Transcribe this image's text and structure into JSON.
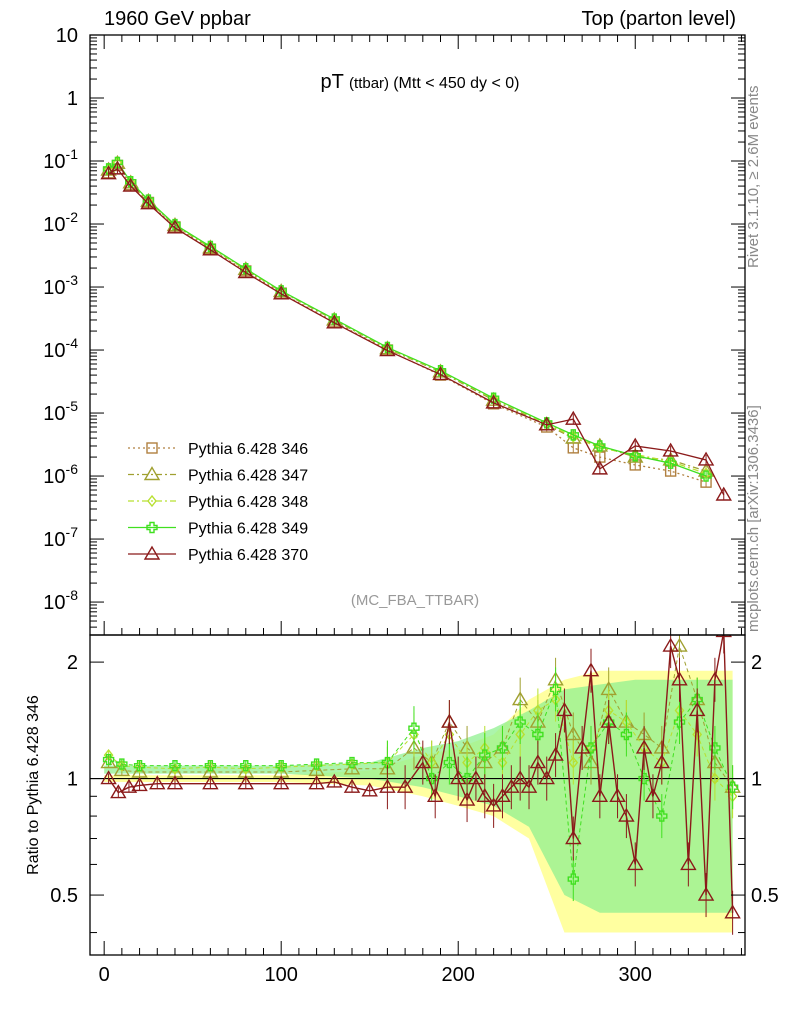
{
  "header": {
    "left": "1960 GeV ppbar",
    "right": "Top (parton level)"
  },
  "side_labels": {
    "rivet": "Rivet 3.1.10, ≥ 2.6M events",
    "mcplots": "mcplots.cern.ch [arXiv:1306.3436]"
  },
  "chart_data": [
    {
      "type": "line",
      "title_main": "pT",
      "title_sub": "(ttbar)",
      "title_rest": "(Mtt < 450 dy < 0)",
      "watermark": "(MC_FBA_TTBAR)",
      "yscale": "log",
      "ylim": [
        3e-09,
        10
      ],
      "xlim": [
        -8,
        362
      ],
      "y_tick_labels": [
        "10",
        "1",
        "10^-1",
        "10^-2",
        "10^-3",
        "10^-4",
        "10^-5",
        "10^-6",
        "10^-7",
        "10^-8"
      ],
      "legend_position": "lower-left",
      "series": [
        {
          "name": "Pythia 6.428 346",
          "color": "#b08040",
          "marker": "square",
          "line": "dotted",
          "x": [
            2.5,
            7.5,
            15,
            25,
            40,
            60,
            80,
            100,
            130,
            160,
            190,
            220,
            250,
            265,
            280,
            300,
            320,
            340
          ],
          "y": [
            0.065,
            0.085,
            0.042,
            0.022,
            0.009,
            0.004,
            0.0018,
            0.0008,
            0.00028,
            0.0001,
            4e-05,
            1.4e-05,
            6e-06,
            2.8e-06,
            2e-06,
            1.5e-06,
            1.2e-06,
            8e-07
          ]
        },
        {
          "name": "Pythia 6.428 347",
          "color": "#a0a030",
          "marker": "triangle",
          "line": "dashdot",
          "x": [
            2.5,
            7.5,
            15,
            25,
            40,
            60,
            80,
            100,
            130,
            160,
            190,
            220,
            250,
            265,
            280,
            300,
            320,
            340
          ],
          "y": [
            0.072,
            0.092,
            0.045,
            0.023,
            0.0095,
            0.0042,
            0.0019,
            0.00085,
            0.0003,
            0.000105,
            4.5e-05,
            1.6e-05,
            6.5e-06,
            4e-06,
            3e-06,
            2e-06,
            1.8e-06,
            1.2e-06
          ]
        },
        {
          "name": "Pythia 6.428 348",
          "color": "#b8e030",
          "marker": "diamond",
          "line": "dashdot",
          "x": [
            2.5,
            7.5,
            15,
            25,
            40,
            60,
            80,
            100,
            130,
            160,
            190,
            220,
            250,
            265,
            280,
            300,
            320,
            340
          ],
          "y": [
            0.074,
            0.094,
            0.046,
            0.0235,
            0.0097,
            0.0043,
            0.0019,
            0.00086,
            0.00031,
            0.000108,
            4.6e-05,
            1.7e-05,
            6.8e-06,
            4.2e-06,
            2.8e-06,
            2.2e-06,
            1.7e-06,
            1.1e-06
          ]
        },
        {
          "name": "Pythia 6.428 349",
          "color": "#40e020",
          "marker": "cross",
          "line": "solid",
          "x": [
            2.5,
            7.5,
            15,
            25,
            40,
            60,
            80,
            100,
            130,
            160,
            190,
            220,
            250,
            265,
            280,
            300,
            320,
            340
          ],
          "y": [
            0.075,
            0.095,
            0.047,
            0.024,
            0.0098,
            0.0044,
            0.00195,
            0.00087,
            0.00031,
            0.00011,
            4.7e-05,
            1.72e-05,
            7e-06,
            4.5e-06,
            3e-06,
            2.1e-06,
            1.6e-06,
            1e-06
          ]
        },
        {
          "name": "Pythia 6.428 370",
          "color": "#8b1a1a",
          "marker": "triangle",
          "line": "solid",
          "x": [
            2.5,
            7.5,
            15,
            25,
            40,
            60,
            80,
            100,
            130,
            160,
            190,
            220,
            250,
            265,
            280,
            300,
            320,
            340,
            350
          ],
          "y": [
            0.063,
            0.075,
            0.04,
            0.021,
            0.0087,
            0.0039,
            0.0017,
            0.00078,
            0.00027,
            9.8e-05,
            4.1e-05,
            1.45e-05,
            6.5e-06,
            8e-06,
            1.3e-06,
            3e-06,
            2.5e-06,
            1.8e-06,
            5e-07
          ]
        }
      ]
    },
    {
      "type": "line",
      "ylabel": "Ratio to Pythia 6.428 346",
      "xlim": [
        -8,
        362
      ],
      "ylim": [
        0.35,
        2.35
      ],
      "x_ticks": [
        0,
        100,
        200,
        300
      ],
      "y_ticks": [
        0.5,
        1,
        2
      ],
      "reference_line": 1,
      "bands": [
        {
          "name": "Pythia 6.428 346 uncertainty",
          "color": "#ffff80",
          "x": [
            0,
            100,
            150,
            180,
            200,
            220,
            240,
            260,
            280,
            300,
            320,
            340,
            355
          ],
          "lo": [
            0.98,
            0.98,
            0.96,
            0.9,
            0.85,
            0.8,
            0.7,
            0.4,
            0.4,
            0.4,
            0.4,
            0.4,
            0.4
          ],
          "hi": [
            1.02,
            1.02,
            1.05,
            1.15,
            1.2,
            1.3,
            1.6,
            1.8,
            1.9,
            1.9,
            1.9,
            1.9,
            1.9
          ]
        },
        {
          "name": "Pythia 6.428 349 uncertainty",
          "color": "#90f090",
          "x": [
            0,
            100,
            150,
            180,
            200,
            220,
            240,
            260,
            280,
            300,
            320,
            340,
            355
          ],
          "lo": [
            1.03,
            1.03,
            1.0,
            0.95,
            0.9,
            0.85,
            0.75,
            0.5,
            0.45,
            0.45,
            0.45,
            0.45,
            0.45
          ],
          "hi": [
            1.08,
            1.08,
            1.1,
            1.2,
            1.25,
            1.35,
            1.5,
            1.7,
            1.75,
            1.8,
            1.8,
            1.8,
            1.8
          ]
        }
      ],
      "series": [
        {
          "name": "Pythia 6.428 347",
          "color": "#a0a030",
          "x": [
            2.5,
            10,
            20,
            40,
            60,
            80,
            100,
            120,
            140,
            160,
            175,
            185,
            195,
            205,
            215,
            225,
            235,
            245,
            255,
            265,
            275,
            285,
            295,
            305,
            315,
            325,
            335,
            345,
            355
          ],
          "y": [
            1.1,
            1.05,
            1.04,
            1.04,
            1.04,
            1.04,
            1.04,
            1.05,
            1.06,
            1.06,
            1.2,
            1.1,
            1.4,
            1.2,
            1.1,
            1.2,
            1.6,
            1.4,
            1.8,
            1.3,
            1.1,
            1.7,
            1.4,
            1.3,
            1.2,
            2.2,
            1.6,
            1.1,
            0.95
          ]
        },
        {
          "name": "Pythia 6.428 348",
          "color": "#b8e030",
          "x": [
            2.5,
            10,
            20,
            40,
            60,
            80,
            100,
            120,
            140,
            160,
            175,
            185,
            195,
            205,
            215,
            225,
            235,
            245,
            255,
            265,
            275,
            285,
            295,
            305,
            315,
            325,
            335,
            345,
            355
          ],
          "y": [
            1.15,
            1.08,
            1.07,
            1.06,
            1.07,
            1.06,
            1.07,
            1.08,
            1.09,
            1.1,
            1.3,
            1.1,
            1.3,
            1.1,
            1.2,
            1.1,
            1.3,
            1.5,
            1.6,
            1.1,
            1.2,
            1.5,
            1.4,
            1.2,
            1.1,
            1.5,
            1.3,
            1.0,
            0.9
          ]
        },
        {
          "name": "Pythia 6.428 349",
          "color": "#40e020",
          "x": [
            2.5,
            10,
            20,
            40,
            60,
            80,
            100,
            120,
            140,
            160,
            175,
            185,
            195,
            205,
            215,
            225,
            235,
            245,
            255,
            265,
            275,
            285,
            295,
            305,
            315,
            325,
            335,
            345,
            355
          ],
          "y": [
            1.12,
            1.09,
            1.08,
            1.08,
            1.08,
            1.08,
            1.08,
            1.09,
            1.1,
            1.1,
            1.35,
            1.0,
            1.1,
            1.0,
            1.15,
            1.2,
            1.4,
            1.3,
            1.7,
            0.55,
            1.2,
            1.4,
            1.3,
            1.0,
            0.8,
            1.4,
            1.6,
            1.2,
            0.95
          ]
        },
        {
          "name": "Pythia 6.428 370",
          "color": "#8b1a1a",
          "x": [
            2.5,
            8,
            14,
            20,
            30,
            40,
            60,
            80,
            100,
            120,
            130,
            140,
            150,
            160,
            170,
            180,
            187,
            195,
            200,
            205,
            210,
            215,
            220,
            225,
            230,
            235,
            240,
            245,
            250,
            255,
            260,
            265,
            270,
            275,
            280,
            285,
            290,
            295,
            300,
            305,
            310,
            315,
            320,
            325,
            330,
            335,
            340,
            345,
            350,
            355
          ],
          "y": [
            1.0,
            0.92,
            0.95,
            0.96,
            0.97,
            0.97,
            0.97,
            0.97,
            0.97,
            0.97,
            0.98,
            0.95,
            0.93,
            0.95,
            0.95,
            1.1,
            0.9,
            1.4,
            1.0,
            0.88,
            1.0,
            0.9,
            0.85,
            0.9,
            0.95,
            1.0,
            0.95,
            1.1,
            1.0,
            1.15,
            1.5,
            0.7,
            1.2,
            1.9,
            0.9,
            1.4,
            0.9,
            0.8,
            0.6,
            1.2,
            0.9,
            1.1,
            2.2,
            1.8,
            0.6,
            1.5,
            0.5,
            1.8,
            2.4,
            0.45
          ]
        }
      ]
    }
  ],
  "colors": {
    "frame": "#000000",
    "header_text": "#000000",
    "side_text": "#888888",
    "watermark_text": "#999999"
  }
}
